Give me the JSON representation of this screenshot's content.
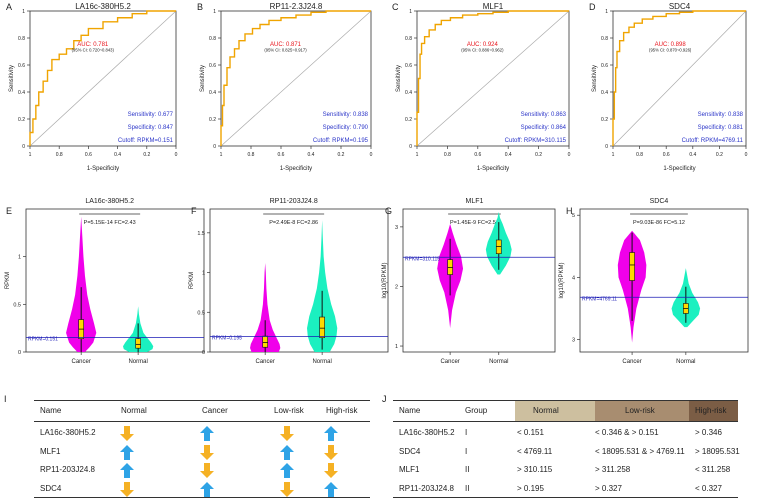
{
  "colors": {
    "roc": "#f0a400",
    "auc": "#e8141c",
    "stats": "#2b35c8",
    "cancer": "#f000ea",
    "normal": "#1bf0c0",
    "cutoff": "#1b1bb5",
    "up": "#2ea3e6",
    "down": "#f5b124",
    "band_normal": "#cdbf9f",
    "band_low": "#a88d70",
    "band_high": "#7b5d45"
  },
  "chart_data": [
    {
      "letter": "A",
      "type": "line",
      "title": "LA16c-380H5.2",
      "xlabel": "1-Specificity",
      "ylabel": "Sensitivity",
      "xticks": [
        "1",
        "0.8",
        "0.6",
        "0.4",
        "0.2",
        "0"
      ],
      "yticks": [
        "0",
        "0.2",
        "0.4",
        "0.6",
        "0.8",
        "1"
      ],
      "auc": "AUC: 0.781",
      "ci": "(95% CI: 0.720~0.843)",
      "sensitivity": "Sensitivity: 0.677",
      "specificity": "Specificity: 0.847",
      "cutoff": "Cutoff: RPKM=0.151",
      "x": [
        0,
        0.02,
        0.04,
        0.06,
        0.09,
        0.12,
        0.15,
        0.2,
        0.25,
        0.3,
        0.35,
        0.4,
        0.5,
        0.6,
        0.7,
        0.8,
        0.9,
        1
      ],
      "y": [
        0,
        0.1,
        0.2,
        0.3,
        0.4,
        0.48,
        0.56,
        0.64,
        0.68,
        0.72,
        0.78,
        0.82,
        0.87,
        0.92,
        0.95,
        0.98,
        1,
        1
      ]
    },
    {
      "letter": "B",
      "type": "line",
      "title": "RP11-2.3J24.8",
      "xlabel": "1-Specificity",
      "ylabel": "Sensitivity",
      "xticks": [
        "1",
        "0.8",
        "0.6",
        "0.4",
        "0.2",
        "0"
      ],
      "yticks": [
        "0",
        "0.2",
        "0.4",
        "0.6",
        "0.8",
        "1"
      ],
      "auc": "AUC: 0.871",
      "ci": "(95% CI: 0.825~0.917)",
      "sensitivity": "Sensitivity: 0.838",
      "specificity": "Specificity: 0.790",
      "cutoff": "Cutoff: RPKM=0.195",
      "x": [
        0,
        0.01,
        0.02,
        0.04,
        0.06,
        0.09,
        0.12,
        0.16,
        0.21,
        0.26,
        0.32,
        0.4,
        0.5,
        0.6,
        0.7,
        0.8,
        1
      ],
      "y": [
        0,
        0.15,
        0.3,
        0.45,
        0.58,
        0.66,
        0.72,
        0.78,
        0.83,
        0.87,
        0.9,
        0.93,
        0.95,
        0.97,
        0.99,
        1,
        1
      ]
    },
    {
      "letter": "C",
      "type": "line",
      "title": "MLF1",
      "xlabel": "1-Specificity",
      "ylabel": "Sensitivity",
      "xticks": [
        "1",
        "0.8",
        "0.6",
        "0.4",
        "0.2",
        "0"
      ],
      "yticks": [
        "0",
        "0.2",
        "0.4",
        "0.6",
        "0.8",
        "1"
      ],
      "auc": "AUC: 0.924",
      "ci": "(95% CI: 0.886~0.962)",
      "sensitivity": "Sensitivity: 0.863",
      "specificity": "Specificity: 0.864",
      "cutoff": "Cutoff: RPKM=310.115",
      "x": [
        0,
        0.01,
        0.02,
        0.03,
        0.05,
        0.08,
        0.12,
        0.16,
        0.22,
        0.3,
        0.4,
        0.5,
        0.6,
        0.7,
        1
      ],
      "y": [
        0,
        0.25,
        0.5,
        0.68,
        0.76,
        0.81,
        0.86,
        0.9,
        0.93,
        0.95,
        0.97,
        0.98,
        0.99,
        1,
        1
      ]
    },
    {
      "letter": "D",
      "type": "line",
      "title": "SDC4",
      "xlabel": "1-Specificity",
      "ylabel": "Sensitivity",
      "xticks": [
        "1",
        "0.8",
        "0.6",
        "0.4",
        "0.2",
        "0"
      ],
      "yticks": [
        "0",
        "0.2",
        "0.4",
        "0.6",
        "0.8",
        "1"
      ],
      "auc": "AUC: 0.898",
      "ci": "(95% CI: 0.870~0.926)",
      "sensitivity": "Sensitivity: 0.838",
      "specificity": "Specificity: 0.881",
      "cutoff": "Cutoff: RPKM=4769.11",
      "x": [
        0,
        0.01,
        0.02,
        0.03,
        0.05,
        0.08,
        0.12,
        0.16,
        0.22,
        0.3,
        0.4,
        0.5,
        0.6,
        0.7,
        0.8,
        1
      ],
      "y": [
        0,
        0.2,
        0.4,
        0.58,
        0.7,
        0.78,
        0.84,
        0.88,
        0.91,
        0.94,
        0.96,
        0.98,
        0.99,
        1,
        1,
        1
      ]
    },
    {
      "letter": "E",
      "type": "violin",
      "title": "LA16c-380H5.2",
      "ylabel": "RPKM",
      "categories": [
        "Cancer",
        "Normal"
      ],
      "ylim": [
        0,
        1.5
      ],
      "yticks": [
        "0",
        "0.5",
        "1"
      ],
      "ytick_values": [
        0,
        0.5,
        1
      ],
      "stat": "P=5.15E-14  FC=2.43",
      "cutoff_value": 0.151,
      "cutoff_label": "RPKM=0.151",
      "groups": [
        {
          "name": "Cancer",
          "min": 0,
          "max": 1.42,
          "q1": 0.14,
          "median": 0.24,
          "q3": 0.34,
          "wlo": 0.0,
          "whi": 0.68,
          "levels": [
            0,
            0.05,
            0.1,
            0.2,
            0.3,
            0.45,
            0.6,
            0.8,
            1.0,
            1.2,
            1.42
          ],
          "widths": [
            0.25,
            0.55,
            0.8,
            1,
            0.85,
            0.6,
            0.4,
            0.25,
            0.15,
            0.08,
            0
          ]
        },
        {
          "name": "Normal",
          "min": 0,
          "max": 0.48,
          "q1": 0.04,
          "median": 0.08,
          "q3": 0.14,
          "wlo": 0.0,
          "whi": 0.3,
          "levels": [
            0,
            0.03,
            0.06,
            0.1,
            0.15,
            0.2,
            0.3,
            0.4,
            0.48
          ],
          "widths": [
            0.6,
            0.95,
            1,
            0.85,
            0.6,
            0.35,
            0.15,
            0.05,
            0
          ]
        }
      ]
    },
    {
      "letter": "F",
      "type": "violin",
      "title": "RP11-203J24.8",
      "ylabel": "RPKM",
      "categories": [
        "Cancer",
        "Normal"
      ],
      "ylim": [
        0,
        1.8
      ],
      "yticks": [
        "0",
        "0.5",
        "1",
        "1.5"
      ],
      "ytick_values": [
        0,
        0.5,
        1,
        1.5
      ],
      "stat": "P=2.49E-8  FC=2.86",
      "cutoff_value": 0.195,
      "cutoff_label": "RPKM=0.195",
      "groups": [
        {
          "name": "Cancer",
          "min": 0,
          "max": 1.12,
          "q1": 0.06,
          "median": 0.12,
          "q3": 0.2,
          "wlo": 0.0,
          "whi": 0.4,
          "levels": [
            0,
            0.05,
            0.1,
            0.18,
            0.28,
            0.4,
            0.6,
            0.8,
            1.0,
            1.12
          ],
          "widths": [
            0.9,
            1,
            0.95,
            0.75,
            0.5,
            0.3,
            0.15,
            0.08,
            0.04,
            0
          ]
        },
        {
          "name": "Normal",
          "min": 0,
          "max": 1.66,
          "q1": 0.18,
          "median": 0.3,
          "q3": 0.44,
          "wlo": 0.03,
          "whi": 0.77,
          "levels": [
            0,
            0.1,
            0.2,
            0.3,
            0.45,
            0.6,
            0.8,
            1.0,
            1.2,
            1.45,
            1.66
          ],
          "widths": [
            0.5,
            0.8,
            0.95,
            1,
            0.85,
            0.6,
            0.35,
            0.2,
            0.1,
            0.04,
            0
          ]
        }
      ]
    },
    {
      "letter": "G",
      "type": "violin",
      "title": "MLF1",
      "ylabel": "log10(RPKM)",
      "categories": [
        "Cancer",
        "Normal"
      ],
      "ylim": [
        0.9,
        3.3
      ],
      "yticks": [
        "1",
        "2",
        "3"
      ],
      "ytick_values": [
        1,
        2,
        3
      ],
      "stat": "P=1.45E-9  FC=2.56",
      "cutoff_value": 2.49,
      "cutoff_label": "RPKM=310.115",
      "groups": [
        {
          "name": "Cancer",
          "min": 1.3,
          "max": 3.05,
          "q1": 2.2,
          "median": 2.32,
          "q3": 2.45,
          "wlo": 1.85,
          "whi": 2.8,
          "levels": [
            1.3,
            1.6,
            1.9,
            2.1,
            2.3,
            2.5,
            2.7,
            2.9,
            3.05
          ],
          "widths": [
            0,
            0.15,
            0.45,
            0.8,
            1,
            0.85,
            0.5,
            0.2,
            0
          ]
        },
        {
          "name": "Normal",
          "min": 2.2,
          "max": 3.25,
          "q1": 2.55,
          "median": 2.67,
          "q3": 2.78,
          "wlo": 2.28,
          "whi": 3.08,
          "levels": [
            2.2,
            2.35,
            2.5,
            2.62,
            2.75,
            2.9,
            3.05,
            3.15,
            3.25
          ],
          "widths": [
            0.1,
            0.55,
            0.9,
            1,
            0.85,
            0.55,
            0.3,
            0.1,
            0
          ]
        }
      ]
    },
    {
      "letter": "H",
      "type": "violin",
      "title": "SDC4",
      "ylabel": "log10(RPKM)",
      "categories": [
        "Cancer",
        "Normal"
      ],
      "ylim": [
        2.8,
        5.1
      ],
      "yticks": [
        "3",
        "4",
        "5"
      ],
      "ytick_values": [
        3,
        4,
        5
      ],
      "stat": "P=9.03E-86  FC=5.12",
      "cutoff_value": 3.68,
      "cutoff_label": "RPKM=4769.11",
      "groups": [
        {
          "name": "Cancer",
          "min": 2.95,
          "max": 4.75,
          "q1": 3.95,
          "median": 4.2,
          "q3": 4.4,
          "wlo": 3.3,
          "whi": 4.72,
          "levels": [
            2.95,
            3.2,
            3.5,
            3.8,
            4.0,
            4.2,
            4.4,
            4.6,
            4.75
          ],
          "widths": [
            0,
            0.1,
            0.3,
            0.65,
            0.95,
            1,
            0.85,
            0.55,
            0
          ]
        },
        {
          "name": "Normal",
          "min": 3.2,
          "max": 4.15,
          "q1": 3.42,
          "median": 3.5,
          "q3": 3.58,
          "wlo": 3.27,
          "whi": 3.85,
          "levels": [
            3.2,
            3.3,
            3.4,
            3.5,
            3.6,
            3.75,
            3.9,
            4.05,
            4.15
          ],
          "widths": [
            0.1,
            0.5,
            0.9,
            1,
            0.85,
            0.45,
            0.2,
            0.08,
            0
          ]
        }
      ]
    }
  ],
  "table_i": {
    "letter": "I",
    "headers": [
      "Name",
      "Normal",
      "Cancer",
      "Low-risk",
      "High-risk"
    ],
    "rows": [
      {
        "name": "LA16c-380H5.2",
        "arrows": [
          "down",
          "up",
          "down",
          "up"
        ]
      },
      {
        "name": "MLF1",
        "arrows": [
          "up",
          "down",
          "up",
          "down"
        ]
      },
      {
        "name": "RP11-203J24.8",
        "arrows": [
          "up",
          "down",
          "up",
          "down"
        ]
      },
      {
        "name": "SDC4",
        "arrows": [
          "down",
          "up",
          "down",
          "up"
        ]
      }
    ]
  },
  "table_j": {
    "letter": "J",
    "headers": [
      "Name",
      "Group",
      "Normal",
      "Low-risk",
      "High-risk"
    ],
    "rows": [
      [
        "LA16c-380H5.2",
        "I",
        "< 0.151",
        "< 0.346 & > 0.151",
        "> 0.346"
      ],
      [
        "SDC4",
        "I",
        "< 4769.11",
        "< 18095.531 & > 4769.11",
        "> 18095.531"
      ],
      [
        "MLF1",
        "II",
        "> 310.115",
        "> 311.258",
        "< 311.258"
      ],
      [
        "RP11-203J24.8",
        "II",
        "> 0.195",
        "> 0.327",
        "< 0.327"
      ]
    ]
  }
}
